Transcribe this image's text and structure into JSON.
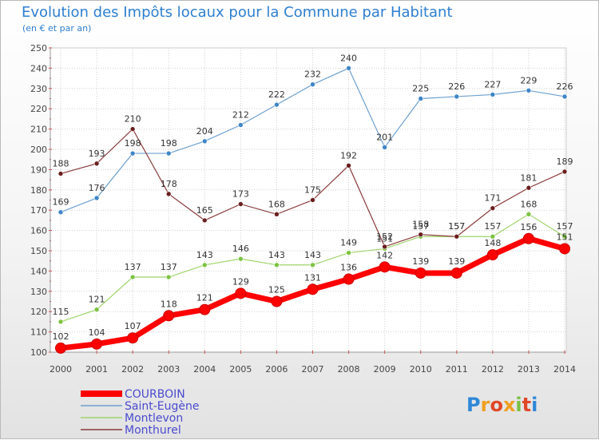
{
  "title": "Evolution des Impôts locaux pour la Commune par Habitant",
  "subtitle": "(en € et par an)",
  "brand": "Proxiti",
  "chart_data": {
    "type": "line",
    "title": "Evolution des Impôts locaux pour la Commune par Habitant",
    "subtitle": "(en € et par an)",
    "xlabel": "",
    "ylabel": "",
    "x": [
      "2000",
      "2001",
      "2002",
      "2003",
      "2004",
      "2005",
      "2006",
      "2007",
      "2008",
      "2009",
      "2010",
      "2011",
      "2012",
      "2013",
      "2014"
    ],
    "ylim": [
      100,
      250
    ],
    "yticks": [
      100,
      110,
      120,
      130,
      140,
      150,
      160,
      170,
      180,
      190,
      200,
      210,
      220,
      230,
      240,
      250
    ],
    "grid": true,
    "legend_position": "bottom-left",
    "series": [
      {
        "name": "COURBOIN",
        "color": "#ff0000",
        "emphasis": true,
        "values": [
          102,
          104,
          107,
          118,
          121,
          129,
          125,
          131,
          136,
          142,
          139,
          139,
          148,
          156,
          151
        ],
        "labels": [
          "102",
          "104",
          "107",
          "118",
          "121",
          "129",
          "125",
          "131",
          "136",
          "142",
          "139",
          "139",
          "148",
          "156",
          "151"
        ]
      },
      {
        "name": "Saint-Eugène",
        "color": "#6da0cf",
        "point_color": "#3d86c8",
        "values": [
          169,
          176,
          198,
          198,
          204,
          212,
          222,
          232,
          240,
          201,
          225,
          226,
          227,
          229,
          226
        ],
        "labels": [
          "169",
          "176",
          "198",
          "198",
          "204",
          "212",
          "222",
          "232",
          "240",
          "201",
          "225",
          "226",
          "227",
          "229",
          "226"
        ]
      },
      {
        "name": "Montlevon",
        "color": "#9fd46a",
        "point_color": "#7cc341",
        "values": [
          115,
          121,
          137,
          137,
          143,
          146,
          143,
          143,
          149,
          151,
          157,
          157,
          157,
          168,
          157
        ],
        "labels": [
          "115",
          "121",
          "137",
          "137",
          "143",
          "146",
          "143",
          "143",
          "149",
          "151",
          "157",
          "157",
          "157",
          "168",
          "157"
        ]
      },
      {
        "name": "Monthurel",
        "color": "#8a3a3a",
        "point_color": "#6b1e1e",
        "values": [
          188,
          193,
          210,
          178,
          165,
          173,
          168,
          175,
          192,
          152,
          158,
          157,
          171,
          181,
          189
        ],
        "labels": [
          "188",
          "193",
          "210",
          "178",
          "165",
          "173",
          "168",
          "175",
          "192",
          "152",
          "158",
          "157",
          "171",
          "181",
          "189"
        ]
      }
    ]
  }
}
